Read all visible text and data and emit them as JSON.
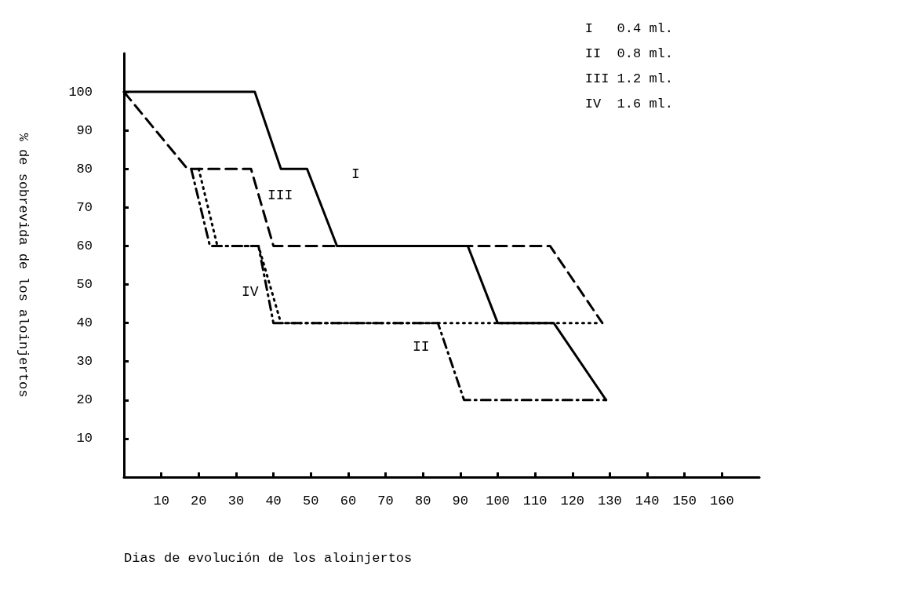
{
  "chart_data": {
    "type": "line",
    "xlabel": "Dias de evolución de los aloinjertos",
    "ylabel": "% de sobrevida de los aloinjertos",
    "xlim": [
      0,
      170
    ],
    "xticks": [
      10,
      20,
      30,
      40,
      50,
      60,
      70,
      80,
      90,
      100,
      110,
      120,
      130,
      140,
      150,
      160
    ],
    "ylim": [
      0,
      110
    ],
    "yticks": [
      10,
      20,
      30,
      40,
      50,
      60,
      70,
      80,
      90,
      100
    ],
    "grid": false,
    "marker": "none",
    "series": [
      {
        "name": "I",
        "color": "#000000",
        "line_style": "solid",
        "x": [
          0,
          35,
          42,
          49,
          57,
          92,
          100,
          115,
          129
        ],
        "values": [
          100,
          100,
          80,
          80,
          60,
          60,
          40,
          40,
          20
        ]
      },
      {
        "name": "II",
        "color": "#000000",
        "line_style": "dashdot",
        "x": [
          18,
          23,
          36,
          40,
          84,
          91,
          129
        ],
        "values": [
          80,
          60,
          60,
          40,
          40,
          20,
          20
        ]
      },
      {
        "name": "III",
        "color": "#000000",
        "line_style": "dashed",
        "x": [
          0,
          17,
          34,
          40,
          114,
          128
        ],
        "values": [
          100,
          80,
          80,
          60,
          60,
          40
        ]
      },
      {
        "name": "IV",
        "color": "#000000",
        "line_style": "dotted",
        "x": [
          20,
          25,
          36,
          42,
          127
        ],
        "values": [
          80,
          60,
          60,
          40,
          40
        ]
      }
    ],
    "annotations": [
      "I   0.4 ml.",
      "II  0.8 ml.",
      "III 1.2 ml.",
      "IV  1.6 ml."
    ]
  }
}
